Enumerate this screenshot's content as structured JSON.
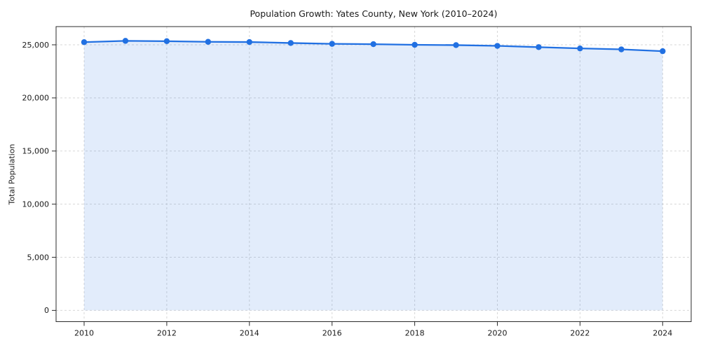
{
  "figure": {
    "background": "#ffffff"
  },
  "chart_data": {
    "type": "area",
    "title": "Population Growth: Yates County, New York (2010–2024)",
    "xlabel": "",
    "ylabel": "Total Population",
    "x": [
      2010,
      2011,
      2012,
      2013,
      2014,
      2015,
      2016,
      2017,
      2018,
      2019,
      2020,
      2021,
      2022,
      2023,
      2024
    ],
    "series": [
      {
        "name": "Total Population",
        "values": [
          25250,
          25370,
          25340,
          25280,
          25260,
          25170,
          25090,
          25060,
          25000,
          24970,
          24900,
          24780,
          24660,
          24570,
          24400
        ]
      }
    ],
    "xticks": {
      "values": [
        2010,
        2012,
        2014,
        2016,
        2018,
        2020,
        2022,
        2024
      ],
      "labels": [
        "2010",
        "2012",
        "2014",
        "2016",
        "2018",
        "2020",
        "2022",
        "2024"
      ]
    },
    "yticks": {
      "values": [
        0,
        5000,
        10000,
        15000,
        20000,
        25000
      ],
      "labels": [
        "0",
        "5,000",
        "10,000",
        "15,000",
        "20,000",
        "25,000"
      ]
    },
    "ylim": [
      0,
      26700
    ],
    "grid": true,
    "grid_style": "dashed",
    "legend_position": "none",
    "colors": {
      "line": "#2170e2",
      "marker": "#2170e2",
      "fill": "rgba(33, 112, 226, 0.13)",
      "grid": "#d7d7d7",
      "spine": "#2b2b2b",
      "tick": "#2b2b2b",
      "text": "#1a1a1a"
    }
  }
}
